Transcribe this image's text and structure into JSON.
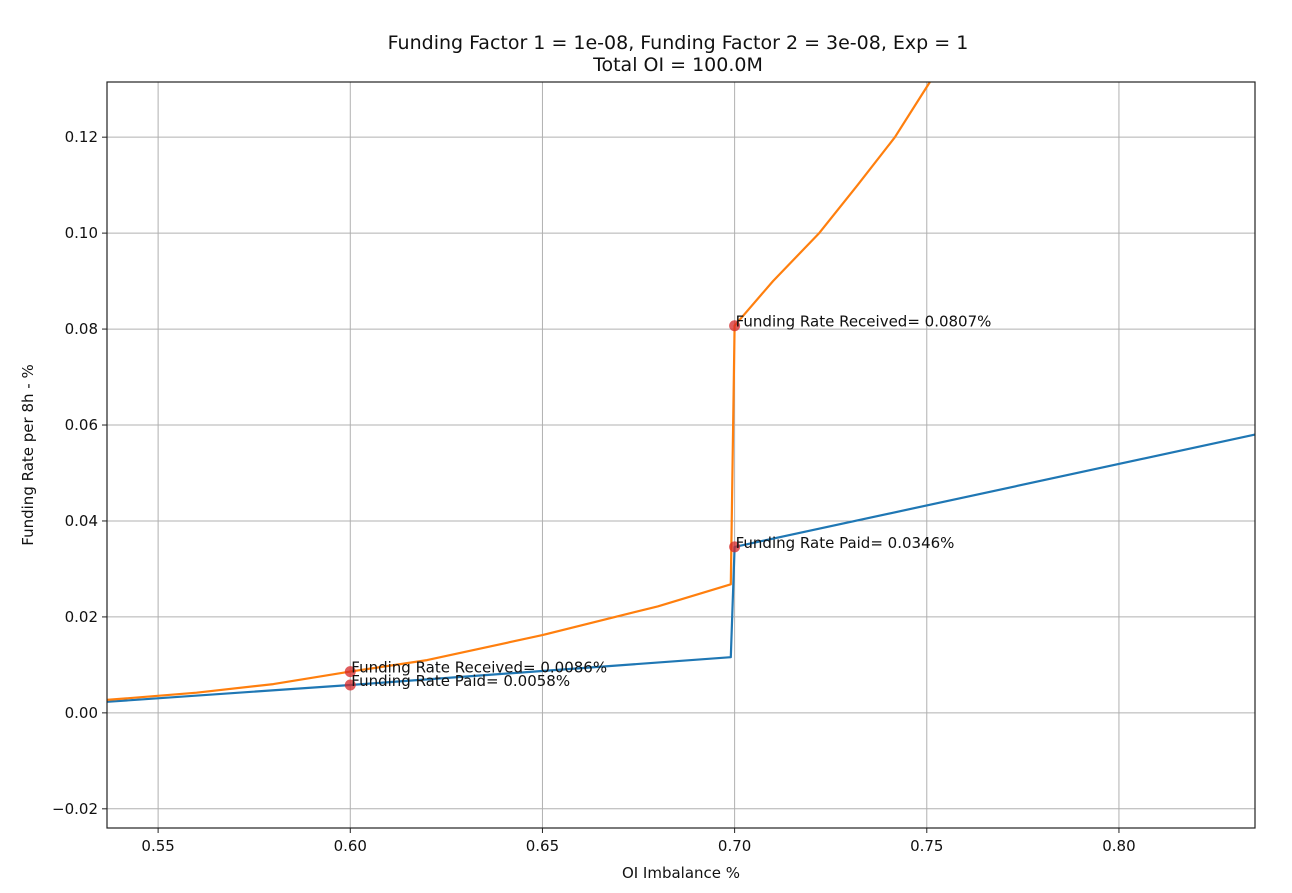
{
  "chart_data": {
    "type": "line",
    "title": [
      "Funding Factor 1 = 1e-08, Funding Factor 2 = 3e-08, Exp = 1",
      "Total OI = 100.0M"
    ],
    "xlabel": "OI Imbalance %",
    "ylabel": "Funding Rate per 8h - %",
    "xlim": [
      0.5367,
      0.8354
    ],
    "ylim": [
      -0.024,
      0.1315
    ],
    "xticks": [
      0.55,
      0.6,
      0.65,
      0.7,
      0.75,
      0.8
    ],
    "xtick_labels": [
      "0.55",
      "0.60",
      "0.65",
      "0.70",
      "0.75",
      "0.80"
    ],
    "yticks": [
      -0.02,
      0.0,
      0.02,
      0.04,
      0.06,
      0.08,
      0.1,
      0.12
    ],
    "ytick_labels": [
      "−0.02",
      "0.00",
      "0.02",
      "0.04",
      "0.06",
      "0.08",
      "0.10",
      "0.12"
    ],
    "grid": true,
    "series": [
      {
        "color": "#1f77b4",
        "x": [
          0.5367,
          0.6,
          0.699,
          0.7,
          0.8354
        ],
        "y": [
          0.0023,
          0.0058,
          0.0116,
          0.0346,
          0.058
        ]
      },
      {
        "color": "#ff7f0e",
        "x": [
          0.5367,
          0.56,
          0.58,
          0.6,
          0.62,
          0.65,
          0.68,
          0.699,
          0.7,
          0.71,
          0.722,
          0.732,
          0.7417,
          0.7508
        ],
        "y": [
          0.0027,
          0.0042,
          0.006,
          0.0086,
          0.011,
          0.0162,
          0.0222,
          0.0268,
          0.0807,
          0.09,
          0.1,
          0.11,
          0.12,
          0.1315
        ]
      }
    ],
    "points_color": "#d62728",
    "annotations": [
      {
        "x": 0.6,
        "y": 0.0086,
        "text": "Funding Rate Received= 0.0086%"
      },
      {
        "x": 0.6,
        "y": 0.0058,
        "text": "Funding Rate Paid= 0.0058%"
      },
      {
        "x": 0.7,
        "y": 0.0807,
        "text": "Funding Rate Received= 0.0807%"
      },
      {
        "x": 0.7,
        "y": 0.0346,
        "text": "Funding Rate Paid= 0.0346%"
      }
    ]
  }
}
